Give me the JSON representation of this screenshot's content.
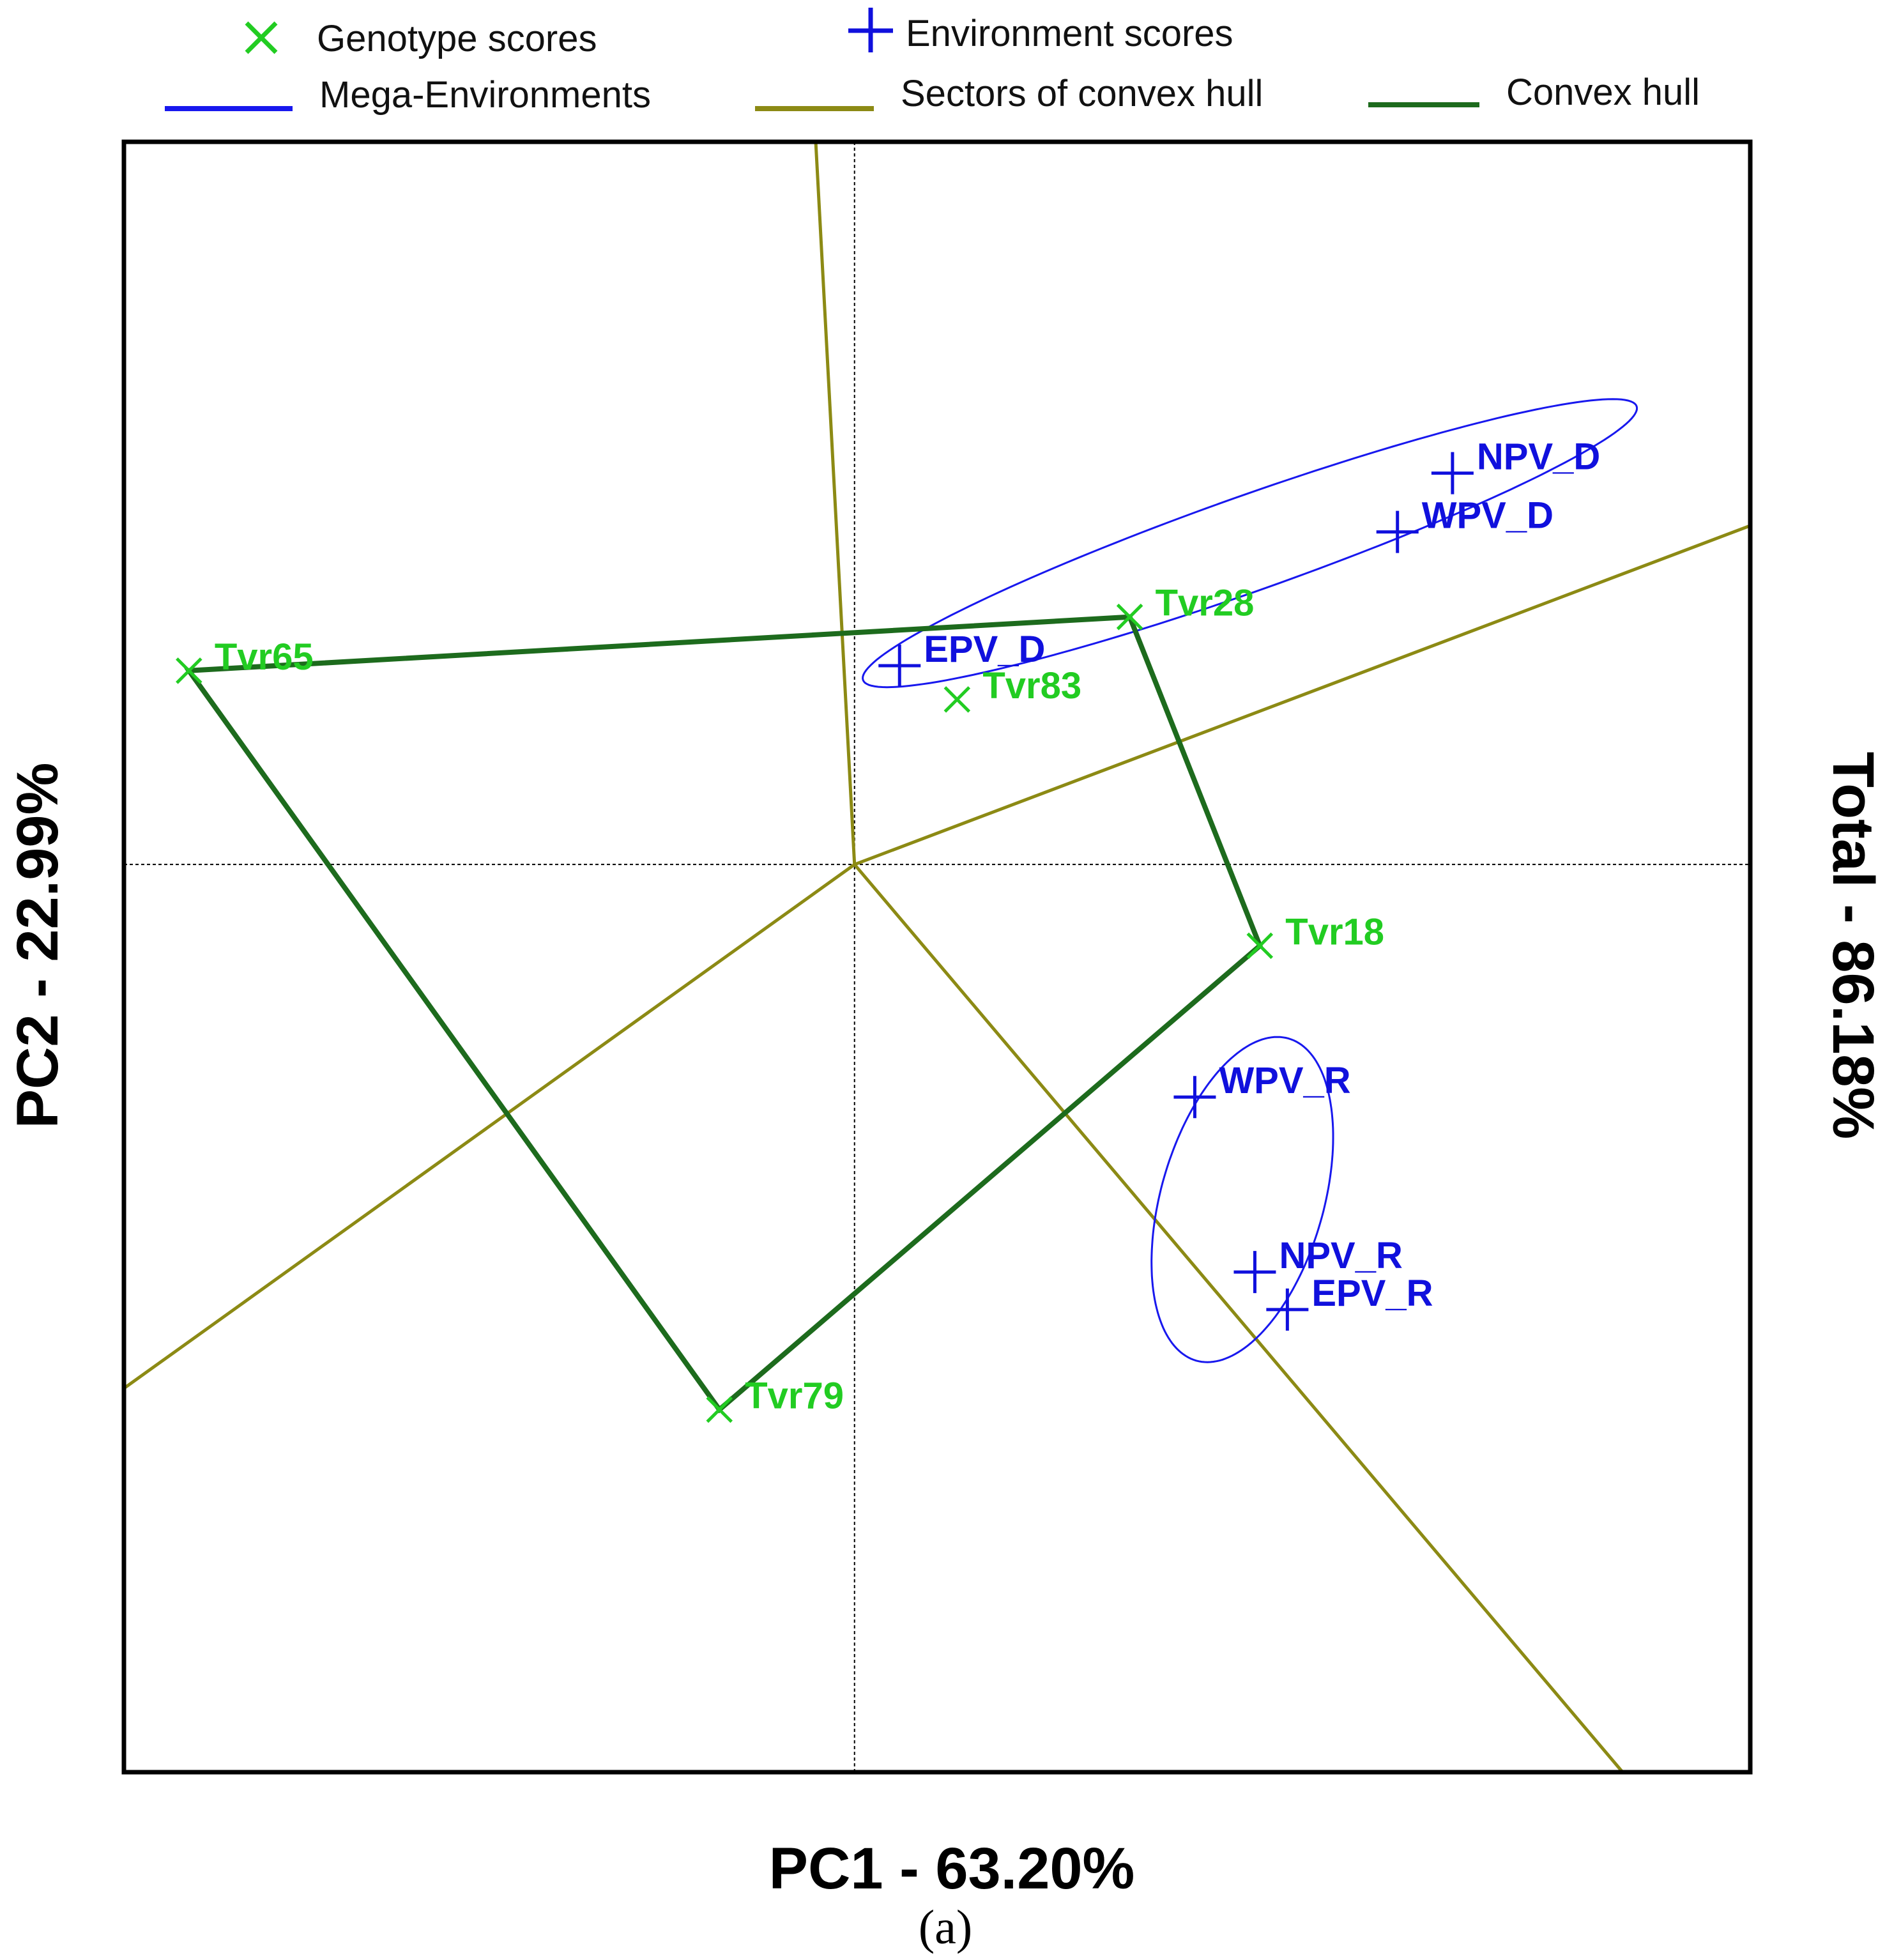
{
  "chart_data": {
    "type": "scatter",
    "subtype": "GGE biplot (which-won-where)",
    "xlabel": "PC1 - 63.20%",
    "ylabel": "PC2 - 22.99%",
    "right_label": "Total - 86.18%",
    "caption": "(a)",
    "xlim": [
      -5.84,
      7.16
    ],
    "ylim": [
      -7.26,
      5.78
    ],
    "colors": {
      "genotype": "#22cc22",
      "environment": "#1010dd",
      "mega_environment": "#1818ee",
      "sectors": "#8c8a14",
      "hull": "#1d6b1d",
      "axes": "#000000"
    },
    "legend": [
      {
        "key": "genotype",
        "label": "Genotype scores",
        "symbol": "x"
      },
      {
        "key": "environment",
        "label": "Environment scores",
        "symbol": "+"
      },
      {
        "key": "mega_environment",
        "label": "Mega-Environments",
        "symbol": "line"
      },
      {
        "key": "sectors",
        "label": "Sectors of convex hull",
        "symbol": "line"
      },
      {
        "key": "hull",
        "label": "Convex hull",
        "symbol": "line"
      }
    ],
    "genotypes": [
      {
        "name": "Tvr65",
        "x": -5.32,
        "y": 1.55
      },
      {
        "name": "Tvr28",
        "x": 2.2,
        "y": 1.98
      },
      {
        "name": "Tvr83",
        "x": 0.82,
        "y": 1.32
      },
      {
        "name": "Tvr18",
        "x": 3.24,
        "y": -0.65
      },
      {
        "name": "Tvr79",
        "x": -1.08,
        "y": -4.36
      }
    ],
    "environments": [
      {
        "name": "NPV_D",
        "x": 4.78,
        "y": 3.13
      },
      {
        "name": "WPV_D",
        "x": 4.34,
        "y": 2.66
      },
      {
        "name": "EPV_D",
        "x": 0.36,
        "y": 1.59
      },
      {
        "name": "WPV_R",
        "x": 2.72,
        "y": -1.86
      },
      {
        "name": "NPV_R",
        "x": 3.2,
        "y": -3.26
      },
      {
        "name": "EPV_R",
        "x": 3.46,
        "y": -3.56
      }
    ],
    "convex_hull": [
      "Tvr65",
      "Tvr28",
      "Tvr18",
      "Tvr79"
    ],
    "sector_rays": [
      {
        "x": -0.31,
        "y": 5.78
      },
      {
        "x": 7.16,
        "y": 2.71
      },
      {
        "x": 6.14,
        "y": -7.26
      },
      {
        "x": -5.84,
        "y": -4.19
      }
    ],
    "mega_environment_ellipses": [
      {
        "members": [
          "NPV_D",
          "WPV_D",
          "EPV_D"
        ],
        "cx": 3.16,
        "cy": 2.57,
        "a": 3.28,
        "b": 0.38,
        "angle_deg": 19.5
      },
      {
        "members": [
          "WPV_R",
          "NPV_R",
          "EPV_R"
        ],
        "cx": 3.1,
        "cy": -2.68,
        "a": 1.34,
        "b": 0.65,
        "angle_deg": 74
      }
    ]
  }
}
